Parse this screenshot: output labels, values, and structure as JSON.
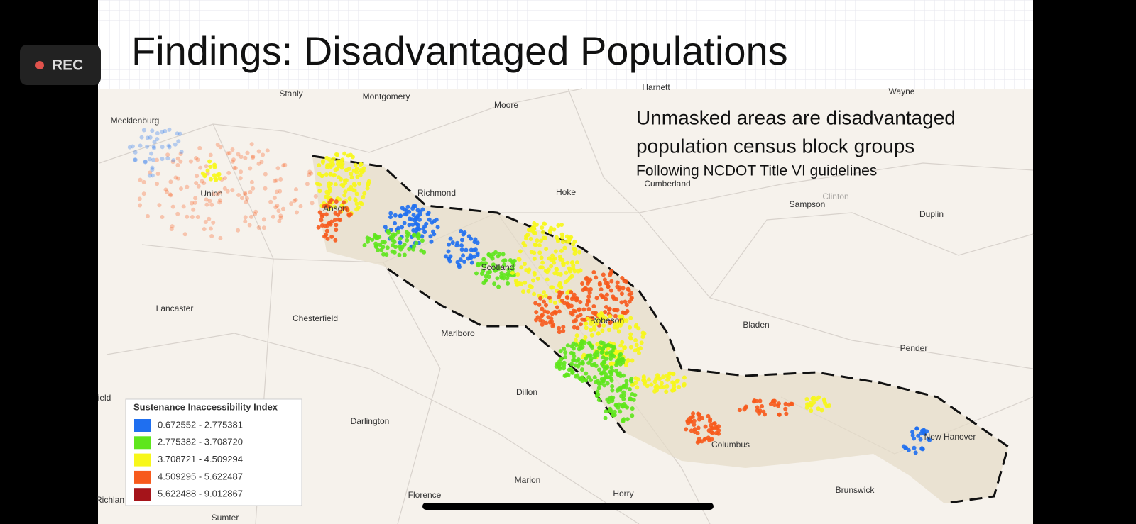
{
  "recording": {
    "label": "REC"
  },
  "slide": {
    "title": "Findings: Disadvantaged Populations",
    "annotation": {
      "lines": [
        "Unmasked areas are disadvantaged",
        "population census block groups"
      ],
      "note": "Following NCDOT Title VI guidelines"
    },
    "map": {
      "places": [
        "Harnett",
        "Wayne",
        "Stanly",
        "Montgomery",
        "Moore",
        "Mecklenburg",
        "Union",
        "Anson",
        "Richmond",
        "Hoke",
        "Cumberland",
        "Clinton",
        "Sampson",
        "Duplin",
        "Scotland",
        "Robeson",
        "Lancaster",
        "Chesterfield",
        "Marlboro",
        "Bladen",
        "Pender",
        "Dillon",
        "Darlington",
        "Columbus",
        "New Hanover",
        "Marion",
        "Florence",
        "Horry",
        "Brunswick",
        "Sumter",
        "Richlan",
        "ield"
      ],
      "legend": {
        "title": "Sustenance Inaccessibility Index",
        "classes": [
          {
            "label": "0.672552 - 2.775381",
            "color": "#1f6ff0"
          },
          {
            "label": "2.775382 - 3.708720",
            "color": "#5ee61c"
          },
          {
            "label": "3.708721 - 4.509294",
            "color": "#f7f71a"
          },
          {
            "label": "4.509295 - 5.622487",
            "color": "#f75a1c"
          },
          {
            "label": "5.622488 - 9.012867",
            "color": "#a5141a"
          }
        ]
      }
    }
  }
}
